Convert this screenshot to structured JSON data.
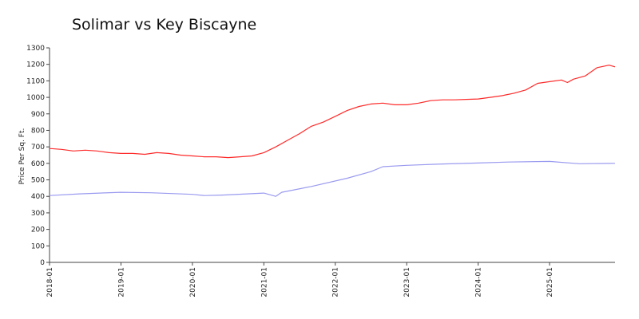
{
  "chart_data": {
    "type": "line",
    "title": "Solimar vs Key Biscayne",
    "xlabel": "",
    "ylabel": "Price Per Sq. Ft.",
    "ylim": [
      0,
      1300
    ],
    "xlim": [
      "2018-01",
      "2025-12"
    ],
    "yticks": [
      0,
      100,
      200,
      300,
      400,
      500,
      600,
      700,
      800,
      900,
      1000,
      1100,
      1200,
      1300
    ],
    "xticks": [
      "2018-01",
      "2019-01",
      "2020-01",
      "2021-01",
      "2022-01",
      "2023-01",
      "2024-01",
      "2025-01"
    ],
    "grid": false,
    "legend": "none",
    "series": [
      {
        "color": "#ff2a2a",
        "points": [
          [
            "2018-01",
            690
          ],
          [
            "2018-03",
            685
          ],
          [
            "2018-05",
            675
          ],
          [
            "2018-07",
            680
          ],
          [
            "2018-09",
            675
          ],
          [
            "2018-11",
            665
          ],
          [
            "2019-01",
            660
          ],
          [
            "2019-03",
            660
          ],
          [
            "2019-05",
            655
          ],
          [
            "2019-07",
            665
          ],
          [
            "2019-09",
            660
          ],
          [
            "2019-11",
            650
          ],
          [
            "2020-01",
            645
          ],
          [
            "2020-03",
            640
          ],
          [
            "2020-05",
            640
          ],
          [
            "2020-07",
            635
          ],
          [
            "2020-09",
            640
          ],
          [
            "2020-11",
            645
          ],
          [
            "2021-01",
            665
          ],
          [
            "2021-03",
            700
          ],
          [
            "2021-05",
            740
          ],
          [
            "2021-07",
            780
          ],
          [
            "2021-09",
            825
          ],
          [
            "2021-11",
            850
          ],
          [
            "2022-01",
            885
          ],
          [
            "2022-03",
            920
          ],
          [
            "2022-05",
            945
          ],
          [
            "2022-07",
            960
          ],
          [
            "2022-09",
            965
          ],
          [
            "2022-11",
            955
          ],
          [
            "2023-01",
            955
          ],
          [
            "2023-03",
            965
          ],
          [
            "2023-05",
            980
          ],
          [
            "2023-07",
            985
          ],
          [
            "2023-09",
            985
          ],
          [
            "2023-11",
            988
          ],
          [
            "2024-01",
            990
          ],
          [
            "2024-03",
            1000
          ],
          [
            "2024-05",
            1010
          ],
          [
            "2024-07",
            1025
          ],
          [
            "2024-09",
            1045
          ],
          [
            "2024-11",
            1085
          ],
          [
            "2025-01",
            1095
          ],
          [
            "2025-03",
            1105
          ],
          [
            "2025-04",
            1090
          ],
          [
            "2025-05",
            1110
          ],
          [
            "2025-07",
            1130
          ],
          [
            "2025-09",
            1180
          ],
          [
            "2025-11",
            1195
          ],
          [
            "2025-12",
            1185
          ]
        ]
      },
      {
        "color": "#9a9af0",
        "points": [
          [
            "2018-01",
            405
          ],
          [
            "2018-06",
            415
          ],
          [
            "2019-01",
            425
          ],
          [
            "2019-06",
            422
          ],
          [
            "2020-01",
            412
          ],
          [
            "2020-03",
            405
          ],
          [
            "2020-06",
            408
          ],
          [
            "2021-01",
            420
          ],
          [
            "2021-03",
            400
          ],
          [
            "2021-04",
            425
          ],
          [
            "2021-09",
            460
          ],
          [
            "2022-03",
            510
          ],
          [
            "2022-07",
            550
          ],
          [
            "2022-09",
            580
          ],
          [
            "2023-01",
            588
          ],
          [
            "2023-06",
            595
          ],
          [
            "2024-01",
            602
          ],
          [
            "2024-06",
            608
          ],
          [
            "2025-01",
            612
          ],
          [
            "2025-06",
            598
          ],
          [
            "2025-12",
            600
          ]
        ]
      }
    ]
  }
}
